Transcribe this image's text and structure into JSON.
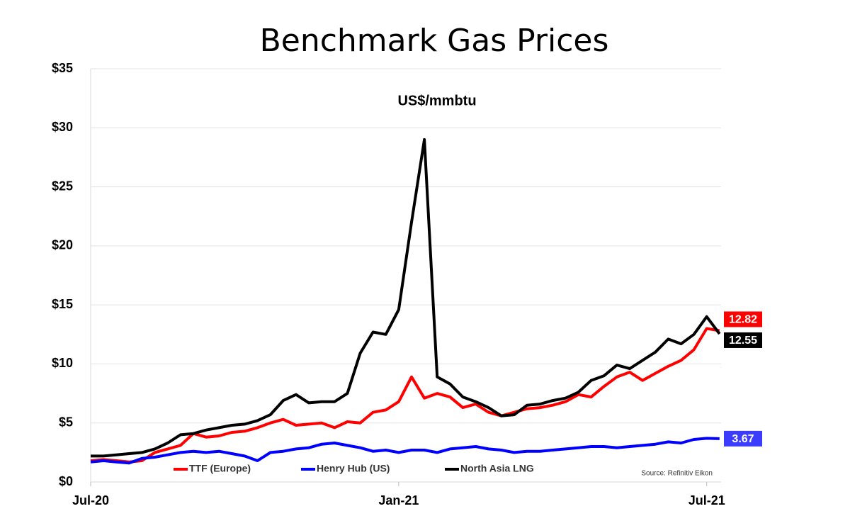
{
  "chart_data": {
    "type": "line",
    "title": "Benchmark Gas Prices",
    "subtitle": "US$/mmbtu",
    "source": "Source: Refinitiv Eikon",
    "x": [
      0,
      0.25,
      0.5,
      0.75,
      1,
      1.25,
      1.5,
      1.75,
      2,
      2.25,
      2.5,
      2.75,
      3,
      3.25,
      3.5,
      3.75,
      4,
      4.25,
      4.5,
      4.75,
      5,
      5.25,
      5.5,
      5.75,
      6,
      6.25,
      6.5,
      6.75,
      7,
      7.25,
      7.5,
      7.75,
      8,
      8.25,
      8.5,
      8.75,
      9,
      9.25,
      9.5,
      9.75,
      10,
      10.25,
      10.5,
      10.75,
      11,
      11.25,
      11.5,
      11.75,
      12,
      12.25
    ],
    "xlim": [
      0,
      12.28
    ],
    "xticks": [
      {
        "value": 0,
        "label": "Jul-20"
      },
      {
        "value": 6,
        "label": "Jan-21"
      },
      {
        "value": 12,
        "label": "Jul-21"
      }
    ],
    "ylim": [
      0,
      35
    ],
    "yticks": [
      {
        "value": 0,
        "label": "$0"
      },
      {
        "value": 5,
        "label": "$5"
      },
      {
        "value": 10,
        "label": "$10"
      },
      {
        "value": 15,
        "label": "$15"
      },
      {
        "value": 20,
        "label": "$20"
      },
      {
        "value": 25,
        "label": "$25"
      },
      {
        "value": 30,
        "label": "$30"
      },
      {
        "value": 35,
        "label": "$35"
      }
    ],
    "grid": true,
    "legend": "bottom",
    "series": [
      {
        "name": "TTF (Europe)",
        "color": "#ff0000",
        "values": [
          1.8,
          1.9,
          1.8,
          1.7,
          1.8,
          2.5,
          2.8,
          3.1,
          4.1,
          3.8,
          3.9,
          4.2,
          4.3,
          4.6,
          5.0,
          5.3,
          4.8,
          4.9,
          5.0,
          4.6,
          5.1,
          5.0,
          5.9,
          6.1,
          6.8,
          8.9,
          7.1,
          7.5,
          7.2,
          6.3,
          6.6,
          5.9,
          5.6,
          5.9,
          6.2,
          6.3,
          6.5,
          6.8,
          7.4,
          7.2,
          8.1,
          8.9,
          9.3,
          8.6,
          9.2,
          9.8,
          10.3,
          11.2,
          13.0,
          12.82
        ]
      },
      {
        "name": "Henry Hub (US)",
        "color": "#0000ff",
        "values": [
          1.7,
          1.8,
          1.7,
          1.6,
          2.0,
          2.1,
          2.3,
          2.5,
          2.6,
          2.5,
          2.6,
          2.4,
          2.2,
          1.8,
          2.5,
          2.6,
          2.8,
          2.9,
          3.2,
          3.3,
          3.1,
          2.9,
          2.6,
          2.7,
          2.5,
          2.7,
          2.7,
          2.5,
          2.8,
          2.9,
          3.0,
          2.8,
          2.7,
          2.5,
          2.6,
          2.6,
          2.7,
          2.8,
          2.9,
          3.0,
          3.0,
          2.9,
          3.0,
          3.1,
          3.2,
          3.4,
          3.3,
          3.6,
          3.7,
          3.67
        ]
      },
      {
        "name": "North Asia LNG",
        "color": "#000000",
        "values": [
          2.2,
          2.2,
          2.3,
          2.4,
          2.5,
          2.8,
          3.3,
          4.0,
          4.1,
          4.4,
          4.6,
          4.8,
          4.9,
          5.2,
          5.7,
          6.9,
          7.4,
          6.7,
          6.8,
          6.8,
          7.5,
          10.9,
          12.7,
          12.5,
          14.6,
          22,
          29,
          8.9,
          8.3,
          7.2,
          6.8,
          6.3,
          5.6,
          5.7,
          6.5,
          6.6,
          6.9,
          7.1,
          7.6,
          8.6,
          9.0,
          9.9,
          9.6,
          10.3,
          11.0,
          12.1,
          11.7,
          12.5,
          14.0,
          12.55
        ]
      }
    ]
  }
}
